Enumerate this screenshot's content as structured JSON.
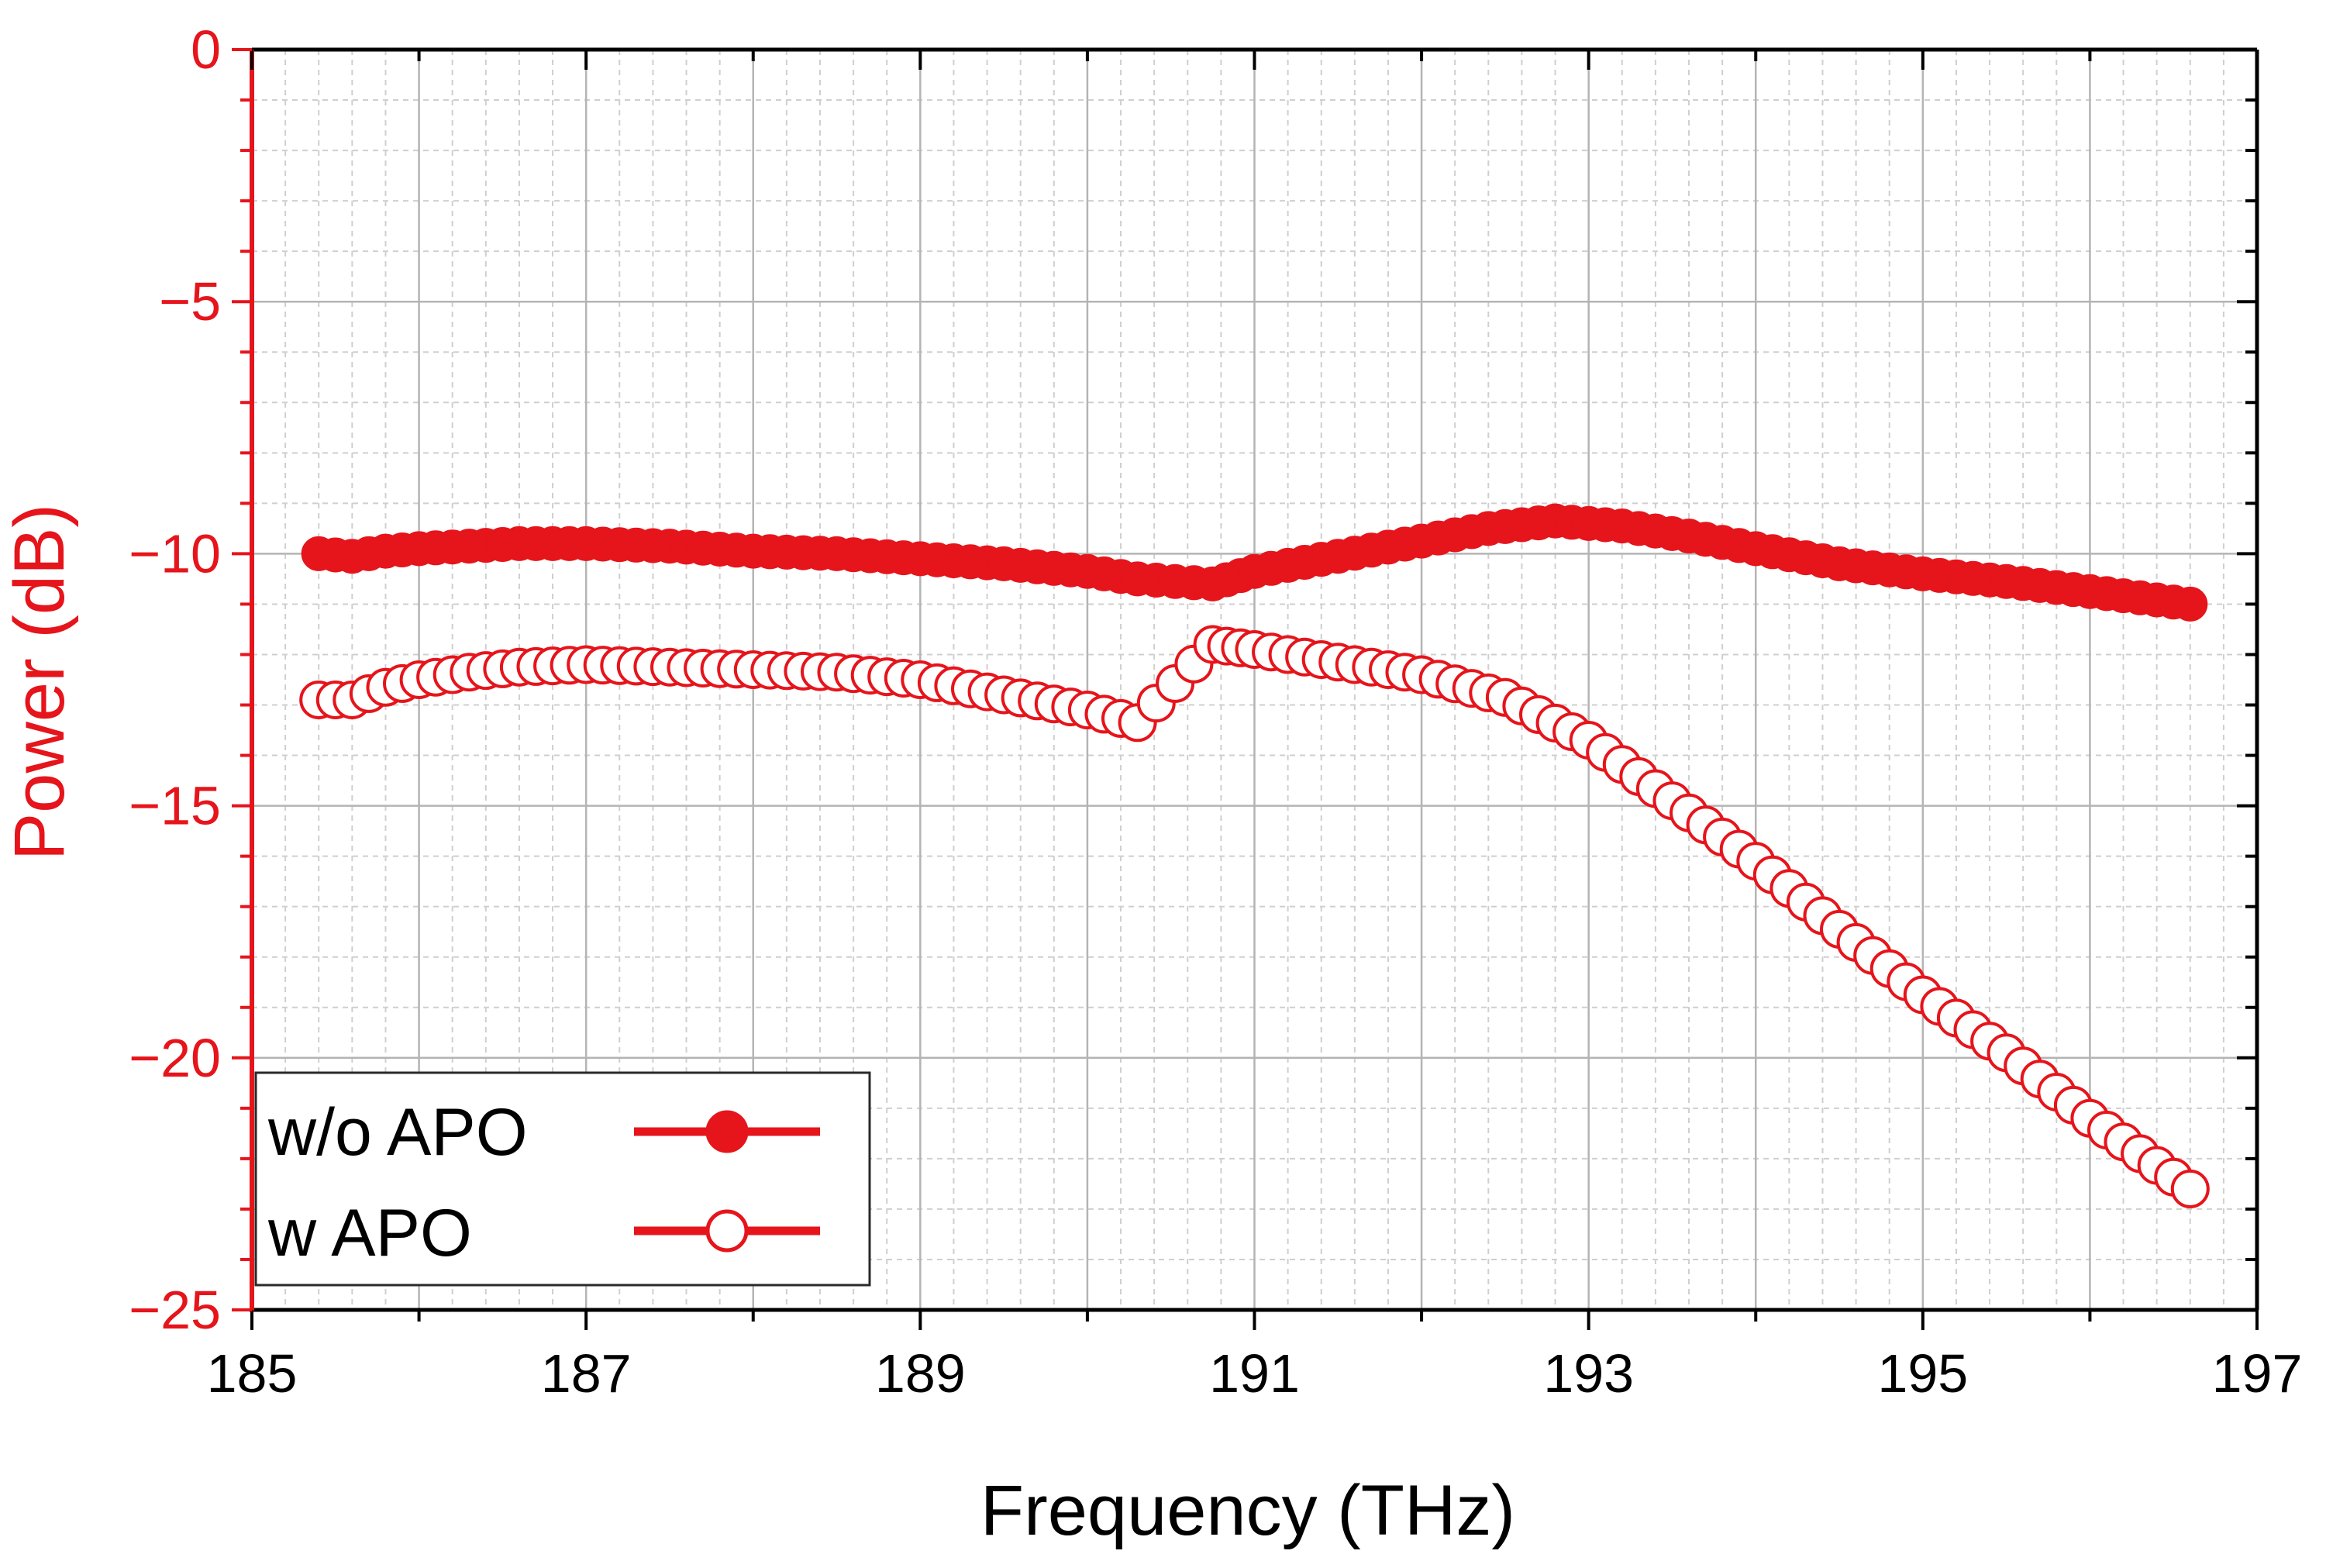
{
  "chart_data": {
    "type": "line",
    "title": "",
    "xlabel": "Frequency (THz)",
    "ylabel": "Power (dB)",
    "xlim": [
      185,
      197
    ],
    "ylim": [
      -25,
      0
    ],
    "x_ticks": [
      185,
      187,
      189,
      191,
      193,
      195,
      197
    ],
    "y_ticks": [
      0,
      -5,
      -10,
      -15,
      -20,
      -25
    ],
    "x_tick_labels": [
      "185",
      "187",
      "189",
      "191",
      "193",
      "195",
      "197"
    ],
    "y_tick_labels": [
      "0",
      "−5",
      "−10",
      "−15",
      "−20",
      "−25"
    ],
    "grid": true,
    "legend_position": "bottom-left",
    "colors": {
      "series": "#e6141b",
      "grid_major": "#b4b4b4",
      "grid_minor": "#cfcfcf",
      "axis": "#000000",
      "y_axis": "#e6141b"
    },
    "series": [
      {
        "name": "w/o APO",
        "marker": "filled-circle",
        "points": [
          [
            185.4,
            -10.0
          ],
          [
            185.6,
            -10.05
          ],
          [
            185.8,
            -9.95
          ],
          [
            186.0,
            -9.9
          ],
          [
            186.3,
            -9.85
          ],
          [
            186.6,
            -9.8
          ],
          [
            187.0,
            -9.8
          ],
          [
            187.5,
            -9.85
          ],
          [
            188.0,
            -9.95
          ],
          [
            188.5,
            -10.0
          ],
          [
            189.0,
            -10.1
          ],
          [
            189.5,
            -10.2
          ],
          [
            190.0,
            -10.35
          ],
          [
            190.3,
            -10.5
          ],
          [
            190.75,
            -10.6
          ],
          [
            191.0,
            -10.35
          ],
          [
            191.5,
            -10.05
          ],
          [
            192.0,
            -9.75
          ],
          [
            192.4,
            -9.5
          ],
          [
            192.8,
            -9.35
          ],
          [
            193.2,
            -9.45
          ],
          [
            193.6,
            -9.65
          ],
          [
            194.0,
            -9.9
          ],
          [
            194.5,
            -10.2
          ],
          [
            195.0,
            -10.4
          ],
          [
            195.5,
            -10.55
          ],
          [
            196.0,
            -10.75
          ],
          [
            196.6,
            -11.0
          ]
        ]
      },
      {
        "name": "w APO",
        "marker": "open-circle",
        "points": [
          [
            185.4,
            -12.9
          ],
          [
            185.6,
            -12.9
          ],
          [
            185.8,
            -12.65
          ],
          [
            186.0,
            -12.5
          ],
          [
            186.3,
            -12.35
          ],
          [
            186.6,
            -12.25
          ],
          [
            187.0,
            -12.2
          ],
          [
            187.5,
            -12.25
          ],
          [
            188.0,
            -12.3
          ],
          [
            188.5,
            -12.35
          ],
          [
            189.0,
            -12.5
          ],
          [
            189.5,
            -12.8
          ],
          [
            190.0,
            -13.1
          ],
          [
            190.3,
            -13.35
          ],
          [
            190.75,
            -11.8
          ],
          [
            191.0,
            -11.9
          ],
          [
            191.5,
            -12.15
          ],
          [
            192.0,
            -12.4
          ],
          [
            192.5,
            -12.85
          ],
          [
            193.0,
            -13.7
          ],
          [
            193.5,
            -14.9
          ],
          [
            194.0,
            -16.1
          ],
          [
            194.5,
            -17.45
          ],
          [
            195.0,
            -18.75
          ],
          [
            195.5,
            -19.9
          ],
          [
            196.0,
            -21.2
          ],
          [
            196.6,
            -22.6
          ]
        ]
      }
    ]
  }
}
